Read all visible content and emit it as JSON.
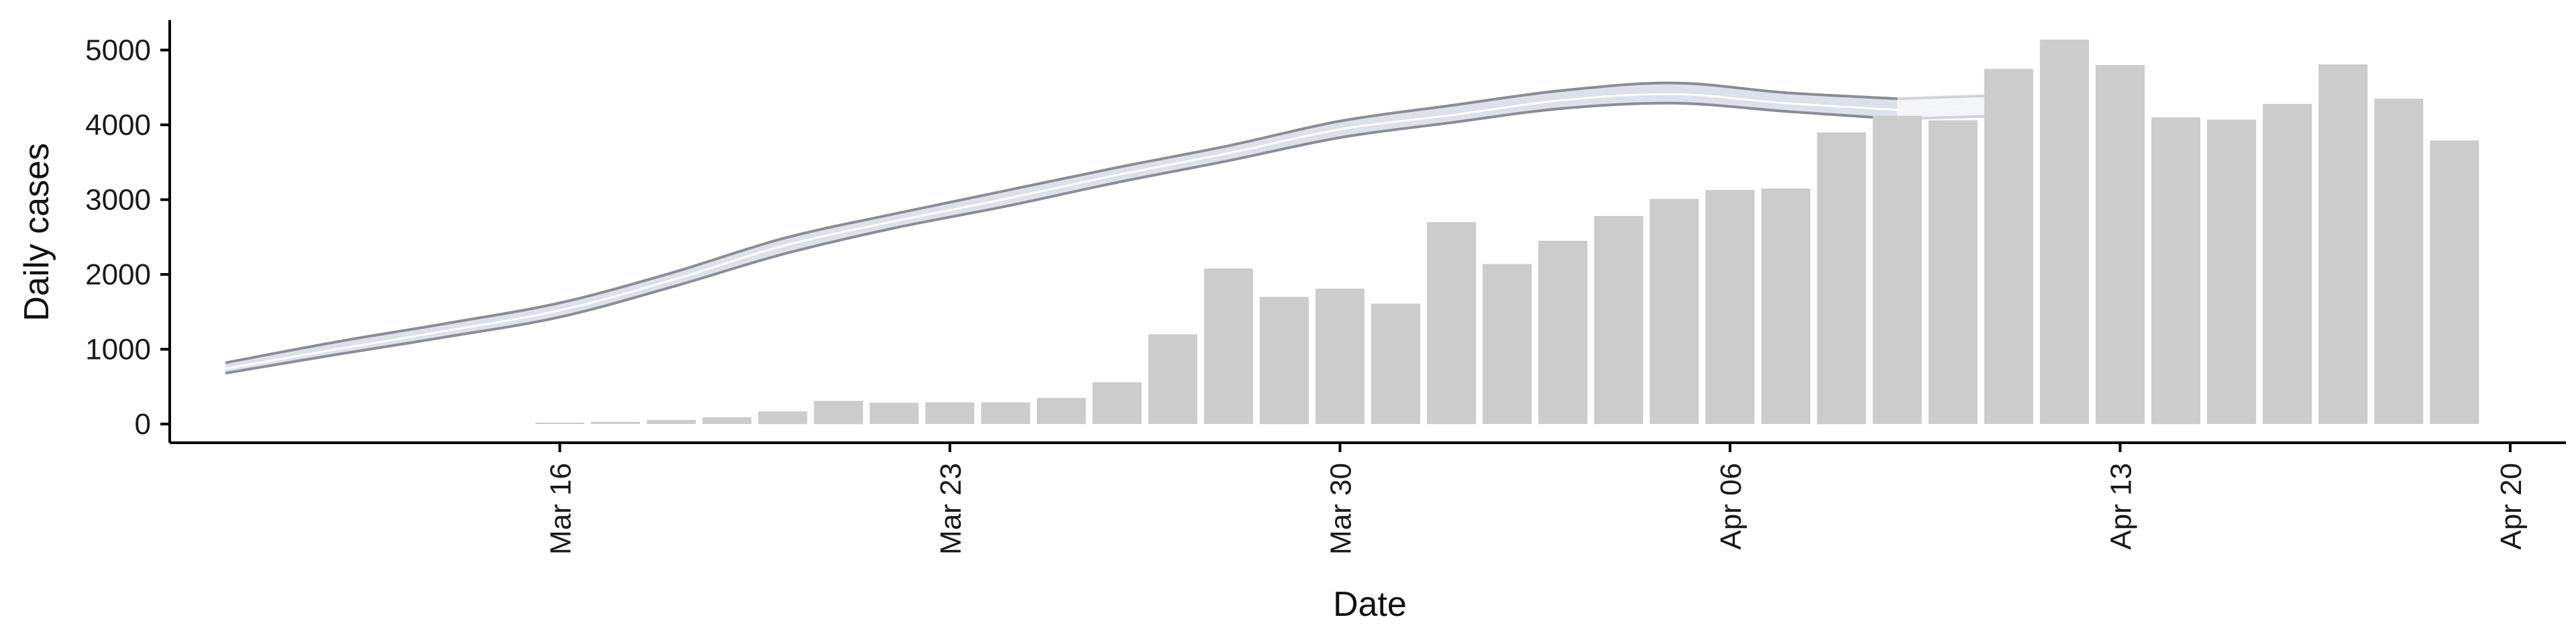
{
  "chart_data": {
    "type": "bar",
    "xlabel": "Date",
    "ylabel": "Daily cases",
    "ylim": [
      -250,
      5400
    ],
    "y_ticks": [
      0,
      1000,
      2000,
      3000,
      4000,
      5000
    ],
    "x_ticks": [
      {
        "date": "2020-03-16",
        "label": "Mar 16"
      },
      {
        "date": "2020-03-23",
        "label": "Mar 23"
      },
      {
        "date": "2020-03-30",
        "label": "Mar 30"
      },
      {
        "date": "2020-04-06",
        "label": "Apr 06"
      },
      {
        "date": "2020-04-13",
        "label": "Apr 13"
      },
      {
        "date": "2020-04-20",
        "label": "Apr 20"
      }
    ],
    "xlim": [
      "2020-03-09",
      "2020-04-21"
    ],
    "bars": {
      "name": "Daily cases",
      "color": "#cccccc",
      "points": [
        {
          "date": "2020-03-16",
          "value": 20
        },
        {
          "date": "2020-03-17",
          "value": 30
        },
        {
          "date": "2020-03-18",
          "value": 55
        },
        {
          "date": "2020-03-19",
          "value": 90
        },
        {
          "date": "2020-03-20",
          "value": 170
        },
        {
          "date": "2020-03-21",
          "value": 310
        },
        {
          "date": "2020-03-22",
          "value": 285
        },
        {
          "date": "2020-03-23",
          "value": 290
        },
        {
          "date": "2020-03-24",
          "value": 290
        },
        {
          "date": "2020-03-25",
          "value": 350
        },
        {
          "date": "2020-03-26",
          "value": 560
        },
        {
          "date": "2020-03-27",
          "value": 1200
        },
        {
          "date": "2020-03-28",
          "value": 2080
        },
        {
          "date": "2020-03-29",
          "value": 1700
        },
        {
          "date": "2020-03-30",
          "value": 1810
        },
        {
          "date": "2020-03-31",
          "value": 1610
        },
        {
          "date": "2020-04-01",
          "value": 2700
        },
        {
          "date": "2020-04-02",
          "value": 2140
        },
        {
          "date": "2020-04-03",
          "value": 2450
        },
        {
          "date": "2020-04-04",
          "value": 2780
        },
        {
          "date": "2020-04-05",
          "value": 3010
        },
        {
          "date": "2020-04-06",
          "value": 3130
        },
        {
          "date": "2020-04-07",
          "value": 3150
        },
        {
          "date": "2020-04-08",
          "value": 3900
        },
        {
          "date": "2020-04-09",
          "value": 4120
        },
        {
          "date": "2020-04-10",
          "value": 4060
        },
        {
          "date": "2020-04-11",
          "value": 4750
        },
        {
          "date": "2020-04-12",
          "value": 5140
        },
        {
          "date": "2020-04-13",
          "value": 4800
        },
        {
          "date": "2020-04-14",
          "value": 4100
        },
        {
          "date": "2020-04-15",
          "value": 4070
        },
        {
          "date": "2020-04-16",
          "value": 4280
        },
        {
          "date": "2020-04-17",
          "value": 4810
        },
        {
          "date": "2020-04-18",
          "value": 4350
        },
        {
          "date": "2020-04-19",
          "value": 3790
        }
      ]
    },
    "band": {
      "type": "area",
      "fill_color": "#dde1ec",
      "edge_color": "#8a8c96",
      "faded_after": "2020-04-09",
      "points": [
        {
          "date": "2020-03-10",
          "lower": 680,
          "mid": 740,
          "upper": 820
        },
        {
          "date": "2020-03-12",
          "lower": 930,
          "mid": 1000,
          "upper": 1100
        },
        {
          "date": "2020-03-14",
          "lower": 1170,
          "mid": 1250,
          "upper": 1350
        },
        {
          "date": "2020-03-16",
          "lower": 1430,
          "mid": 1520,
          "upper": 1620
        },
        {
          "date": "2020-03-18",
          "lower": 1830,
          "mid": 1920,
          "upper": 2020
        },
        {
          "date": "2020-03-20",
          "lower": 2270,
          "mid": 2380,
          "upper": 2480
        },
        {
          "date": "2020-03-22",
          "lower": 2620,
          "mid": 2710,
          "upper": 2810
        },
        {
          "date": "2020-03-24",
          "lower": 2910,
          "mid": 3010,
          "upper": 3120
        },
        {
          "date": "2020-03-26",
          "lower": 3230,
          "mid": 3330,
          "upper": 3430
        },
        {
          "date": "2020-03-28",
          "lower": 3520,
          "mid": 3620,
          "upper": 3720
        },
        {
          "date": "2020-03-30",
          "lower": 3830,
          "mid": 3940,
          "upper": 4050
        },
        {
          "date": "2020-04-01",
          "lower": 4030,
          "mid": 4130,
          "upper": 4260
        },
        {
          "date": "2020-04-03",
          "lower": 4220,
          "mid": 4330,
          "upper": 4460
        },
        {
          "date": "2020-04-05",
          "lower": 4290,
          "mid": 4410,
          "upper": 4560
        },
        {
          "date": "2020-04-07",
          "lower": 4180,
          "mid": 4290,
          "upper": 4430
        },
        {
          "date": "2020-04-09",
          "lower": 4080,
          "mid": 4200,
          "upper": 4350
        },
        {
          "date": "2020-04-11",
          "lower": 4120,
          "mid": 4260,
          "upper": 4400
        }
      ]
    },
    "grid": false,
    "legend": "none"
  }
}
